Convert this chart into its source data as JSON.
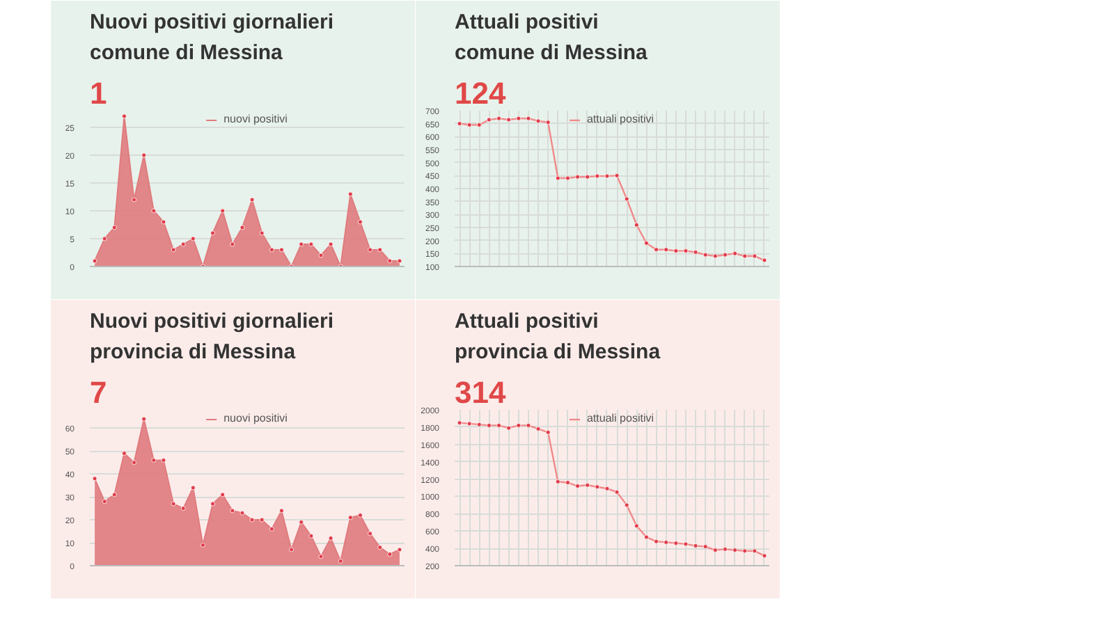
{
  "chart_data": [
    {
      "type": "area",
      "title": "Nuovi positivi giornalieri\ncomune di Messina",
      "subtitle": "1",
      "categories": [
        null,
        null,
        null,
        null,
        null,
        null,
        null,
        null,
        null,
        null,
        null,
        null,
        null,
        null,
        null,
        null,
        null,
        null,
        null,
        null,
        null,
        null,
        null,
        null,
        null,
        null,
        null,
        null,
        null,
        null,
        null,
        null
      ],
      "series": [
        {
          "name": "nuovi positivi",
          "color": "#e07b7e",
          "values": [
            1,
            5,
            7,
            27,
            12,
            20,
            10,
            8,
            3,
            4,
            5,
            0,
            6,
            10,
            4,
            7,
            12,
            6,
            3,
            3,
            0,
            4,
            4,
            2,
            4,
            0,
            13,
            8,
            3,
            3,
            1,
            1
          ]
        }
      ],
      "ylim": [
        0,
        28
      ],
      "yticks": [
        0,
        5,
        10,
        15,
        20,
        25
      ],
      "grid": "y",
      "legend": "top",
      "marker": "circle"
    },
    {
      "type": "line",
      "title": "Attuali positivi\ncomune di Messina",
      "subtitle": "124",
      "categories": [
        null,
        null,
        null,
        null,
        null,
        null,
        null,
        null,
        null,
        null,
        null,
        null,
        null,
        null,
        null,
        null,
        null,
        null,
        null,
        null,
        null,
        null,
        null,
        null,
        null,
        null,
        null,
        null,
        null,
        null,
        null,
        null
      ],
      "series": [
        {
          "name": "attuali positivi",
          "color": "#f08a8a",
          "values": [
            650,
            645,
            645,
            665,
            670,
            665,
            670,
            670,
            660,
            655,
            440,
            440,
            445,
            445,
            448,
            448,
            450,
            360,
            260,
            190,
            165,
            165,
            160,
            160,
            155,
            145,
            140,
            145,
            150,
            140,
            140,
            124
          ]
        }
      ],
      "ylim": [
        100,
        700
      ],
      "yticks": [
        100,
        150,
        200,
        250,
        300,
        350,
        400,
        450,
        500,
        550,
        600,
        650,
        700
      ],
      "grid": true,
      "legend": "top",
      "marker": "circle"
    },
    {
      "type": "area",
      "title": "Nuovi positivi giornalieri\nprovincia di Messina",
      "subtitle": "7",
      "categories": [
        null,
        null,
        null,
        null,
        null,
        null,
        null,
        null,
        null,
        null,
        null,
        null,
        null,
        null,
        null,
        null,
        null,
        null,
        null,
        null,
        null,
        null,
        null,
        null,
        null,
        null,
        null,
        null,
        null,
        null,
        null,
        null
      ],
      "series": [
        {
          "name": "nuovi positivi",
          "color": "#e07b7e",
          "values": [
            38,
            28,
            31,
            49,
            45,
            64,
            46,
            46,
            27,
            25,
            34,
            9,
            27,
            31,
            24,
            23,
            20,
            20,
            16,
            24,
            7,
            19,
            13,
            4,
            12,
            2,
            21,
            22,
            14,
            8,
            5,
            7
          ]
        }
      ],
      "ylim": [
        0,
        68
      ],
      "yticks": [
        0,
        10,
        20,
        30,
        40,
        50,
        60
      ],
      "grid": "y",
      "legend": "top",
      "marker": "circle"
    },
    {
      "type": "line",
      "title": "Attuali positivi\nprovincia di Messina",
      "subtitle": "314",
      "categories": [
        null,
        null,
        null,
        null,
        null,
        null,
        null,
        null,
        null,
        null,
        null,
        null,
        null,
        null,
        null,
        null,
        null,
        null,
        null,
        null,
        null,
        null,
        null,
        null,
        null,
        null,
        null,
        null,
        null,
        null,
        null,
        null
      ],
      "series": [
        {
          "name": "attuali positivi",
          "color": "#f08a8a",
          "values": [
            1850,
            1840,
            1830,
            1820,
            1820,
            1790,
            1820,
            1820,
            1780,
            1740,
            1170,
            1160,
            1120,
            1130,
            1110,
            1090,
            1050,
            900,
            660,
            530,
            480,
            470,
            460,
            450,
            430,
            420,
            380,
            390,
            380,
            370,
            370,
            314
          ]
        }
      ],
      "ylim": [
        200,
        2000
      ],
      "yticks": [
        200,
        400,
        600,
        800,
        1000,
        1200,
        1400,
        1600,
        1800,
        2000
      ],
      "grid": true,
      "legend": "top",
      "marker": "circle"
    }
  ]
}
